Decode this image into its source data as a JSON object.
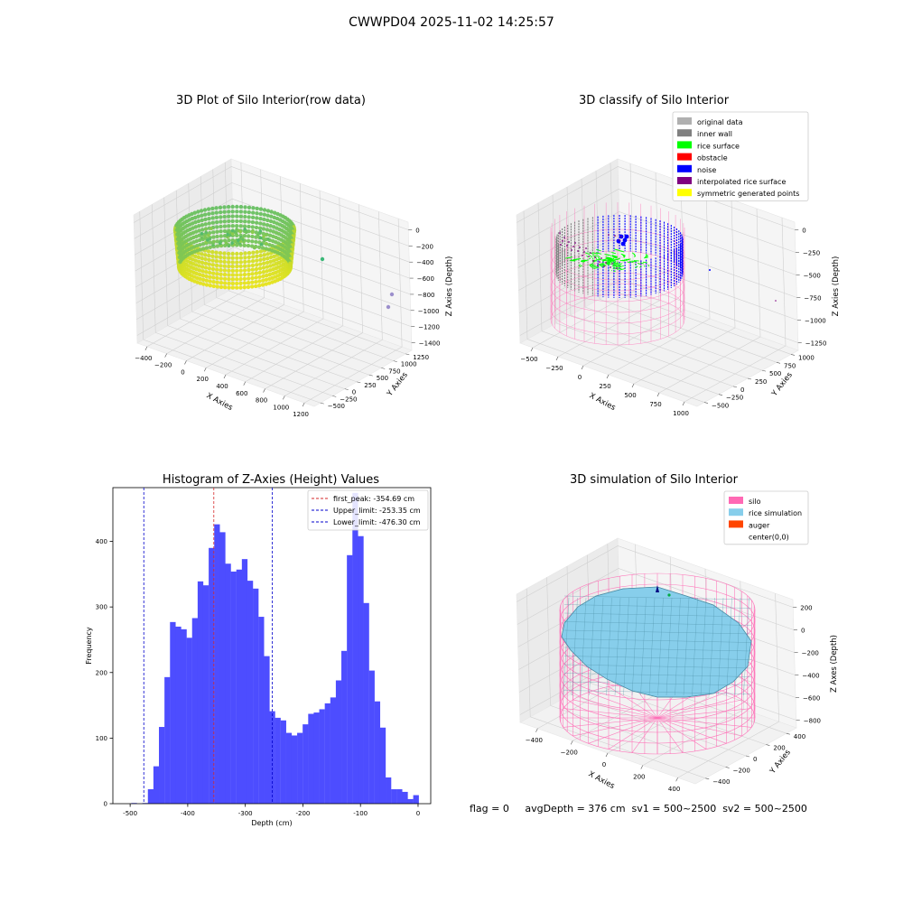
{
  "figure_title": "CWWPD04 2025-11-02 14:25:57",
  "status_line": "flag = 0     avgDepth = 376 cm  sv1 = 500~2500  sv2 = 500~2500",
  "colors": {
    "hist_bar": "#4d4dff",
    "first_peak_line": "#d62728",
    "limit_line": "#0000cc",
    "pane": "#f2f2f2",
    "silo": "#ff69b4",
    "rice_simulation": "#87ceeb",
    "auger": "#ff4500",
    "viridis_low": "#3ab37a",
    "viridis_high": "#e8e419"
  },
  "chart_data": [
    {
      "id": "raw",
      "type": "scatter3d",
      "title": "3D Plot of Silo Interior(row data)",
      "xlabel": "X Axies",
      "ylabel": "Y Axies",
      "zlabel": "Z Axies (Depth)",
      "x_ticks": [
        "−400",
        "−200",
        "0",
        "200",
        "400",
        "600",
        "800",
        "1000",
        "1200"
      ],
      "y_ticks": [
        "−500",
        "−250",
        "0",
        "250",
        "500",
        "750",
        "1000",
        "1250"
      ],
      "z_ticks": [
        "0",
        "−200",
        "−400",
        "−600",
        "−800",
        "−1000",
        "−1200",
        "−1400"
      ],
      "colormap": "viridis",
      "outliers": [
        {
          "x": 1000,
          "y": 200,
          "z": -820
        },
        {
          "x": 1150,
          "y": -300,
          "z": -1180
        },
        {
          "x": 1150,
          "y": -380,
          "z": -1320
        }
      ]
    },
    {
      "id": "classify",
      "type": "scatter3d",
      "title": "3D classify of Silo Interior",
      "xlabel": "X Axies",
      "ylabel": "Y Axies",
      "zlabel": "Z Axies (Depth)",
      "x_ticks": [
        "−500",
        "−250",
        "0",
        "250",
        "500",
        "750",
        "1000"
      ],
      "y_ticks": [
        "−500",
        "−250",
        "0",
        "250",
        "500",
        "750",
        "1000"
      ],
      "z_ticks": [
        "0",
        "−250",
        "−500",
        "−750",
        "−1000",
        "−1250"
      ],
      "legend_position": "top-right",
      "legend": [
        {
          "label": "original data",
          "color": "#b0b0b0"
        },
        {
          "label": "inner wall",
          "color": "#808080"
        },
        {
          "label": "rice surface",
          "color": "#00ff00"
        },
        {
          "label": "obstacle",
          "color": "#ff0000"
        },
        {
          "label": "noise",
          "color": "#0000ff"
        },
        {
          "label": "interpolated rice surface",
          "color": "#800080"
        },
        {
          "label": "symmetric generated points",
          "color": "#ffff00"
        }
      ]
    },
    {
      "id": "hist",
      "type": "bar",
      "title": "Histogram of Z-Axies (Height) Values",
      "xlabel": "Depth (cm)",
      "ylabel": "Frequency",
      "xlim": [
        -530,
        22
      ],
      "ylim": [
        0,
        482
      ],
      "x_ticks": [
        -500,
        -400,
        -300,
        -200,
        -100,
        0
      ],
      "y_ticks": [
        0,
        100,
        200,
        300,
        400
      ],
      "bin_start": -498,
      "bin_width": 9.6,
      "values": [
        1,
        0,
        1,
        22,
        57,
        117,
        193,
        277,
        270,
        266,
        253,
        283,
        339,
        333,
        390,
        426,
        414,
        366,
        354,
        357,
        373,
        340,
        328,
        285,
        225,
        141,
        131,
        127,
        108,
        104,
        108,
        121,
        137,
        139,
        144,
        153,
        162,
        188,
        233,
        379,
        474,
        408,
        306,
        203,
        156,
        116,
        40,
        22,
        22,
        18,
        7,
        13
      ],
      "vlines": [
        {
          "label": "first_peak: -354.69 cm",
          "x": -354.69,
          "color": "#d62728"
        },
        {
          "label": "Upper_limit: -253.35 cm",
          "x": -253.35,
          "color": "#0000cc"
        },
        {
          "label": "Lower_limit: -476.30 cm",
          "x": -476.3,
          "color": "#0000cc"
        }
      ],
      "legend_position": "top-right"
    },
    {
      "id": "sim",
      "type": "surface3d",
      "title": "3D simulation of Silo Interior",
      "xlabel": "X Axies",
      "ylabel": "Y Axies",
      "zlabel": "Z Axes (Depth)",
      "x_ticks": [
        "−400",
        "−200",
        "0",
        "200",
        "400"
      ],
      "y_ticks": [
        "−400",
        "−200",
        "0",
        "200",
        "400"
      ],
      "z_ticks": [
        "200",
        "0",
        "−200",
        "−400",
        "−600",
        "−800"
      ],
      "legend_position": "top-right",
      "legend": [
        {
          "label": "silo",
          "color": "#ff69b4"
        },
        {
          "label": "rice simulation",
          "color": "#87ceeb"
        },
        {
          "label": "auger",
          "color": "#ff4500"
        },
        {
          "label": "center(0,0)",
          "color": "#ffffff"
        }
      ]
    }
  ]
}
